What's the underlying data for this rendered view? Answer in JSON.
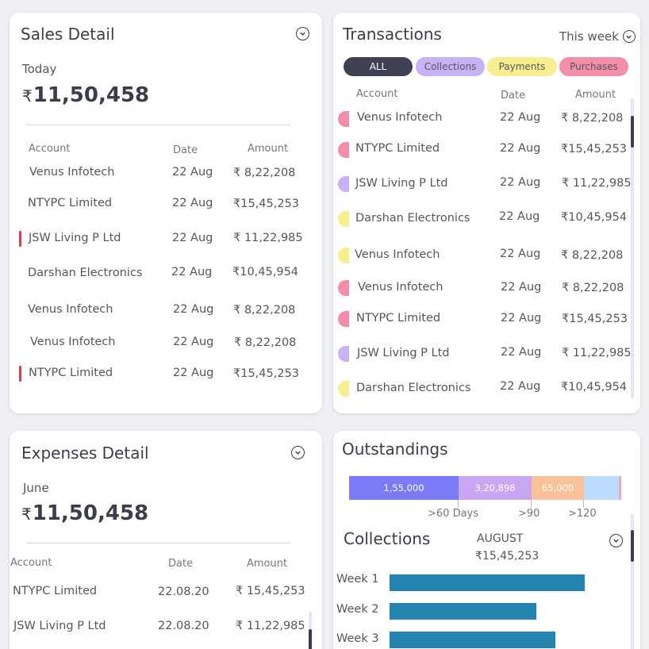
{
  "sales": {
    "title": "Sales Detail",
    "period": "Today",
    "currency": "₹",
    "total": "11,50,458",
    "headers": {
      "account": "Account",
      "date": "Date",
      "amount": "Amount"
    },
    "rows": [
      {
        "account": "Venus Infotech",
        "date": "22 Aug",
        "amount": "₹ 8,22,208"
      },
      {
        "account": "NTYPC Limited",
        "date": "22 Aug",
        "amount": "₹15,45,253"
      },
      {
        "account": "JSW Living P Ltd",
        "date": "22 Aug",
        "amount": "₹ 11,22,985"
      },
      {
        "account": "Darshan Electronics",
        "date": "22 Aug",
        "amount": "₹10,45,954"
      },
      {
        "account": "Venus Infotech",
        "date": "22 Aug",
        "amount": "₹ 8,22,208"
      },
      {
        "account": "Venus Infotech",
        "date": "22 Aug",
        "amount": "₹ 8,22,208"
      },
      {
        "account": "NTYPC Limited",
        "date": "22 Aug",
        "amount": "₹15,45,253"
      }
    ]
  },
  "transactions": {
    "title": "Transactions",
    "filter": "This week",
    "tabs": {
      "all": "ALL",
      "collections": "Collections",
      "payments": "Payments",
      "purchases": "Purchases"
    },
    "headers": {
      "account": "Account",
      "date": "Date",
      "amount": "Amount"
    },
    "rows": [
      {
        "account": "Venus Infotech",
        "date": "22 Aug",
        "amount": "₹ 8,22,208",
        "type": "purchases"
      },
      {
        "account": "NTYPC Limited",
        "date": "22 Aug",
        "amount": "₹15,45,253",
        "type": "purchases"
      },
      {
        "account": "JSW Living P Ltd",
        "date": "22 Aug",
        "amount": "₹ 11,22,985",
        "type": "collections"
      },
      {
        "account": "Darshan Electronics",
        "date": "22 Aug",
        "amount": "₹10,45,954",
        "type": "payments"
      },
      {
        "account": "Venus Infotech",
        "date": "22 Aug",
        "amount": "₹ 8,22,208",
        "type": "payments"
      },
      {
        "account": "Venus Infotech",
        "date": "22 Aug",
        "amount": "₹ 8,22,208",
        "type": "purchases"
      },
      {
        "account": "NTYPC Limited",
        "date": "22 Aug",
        "amount": "₹15,45,253",
        "type": "purchases"
      },
      {
        "account": "JSW Living P Ltd",
        "date": "22 Aug",
        "amount": "₹ 11,22,985",
        "type": "collections"
      },
      {
        "account": "Darshan Electronics",
        "date": "22 Aug",
        "amount": "₹10,45,954",
        "type": "payments"
      }
    ]
  },
  "expenses": {
    "title": "Expenses Detail",
    "period": "June",
    "currency": "₹",
    "total": "11,50,458",
    "headers": {
      "account": "Account",
      "date": "Date",
      "amount": "Amount"
    },
    "rows": [
      {
        "account": "NTYPC Limited",
        "date": "22.08.20",
        "amount": "₹ 15,45,253"
      },
      {
        "account": "JSW Living P Ltd",
        "date": "22.08.20",
        "amount": "₹ 11,22,985"
      }
    ]
  },
  "outstandings": {
    "title": "Outstandings",
    "segments": [
      {
        "label": "1,55,000",
        "color": "#7b7bf7"
      },
      {
        "label": "3,20,898",
        "color": "#c9a6f2"
      },
      {
        "label": "65,000",
        "color": "#f9c199"
      },
      {
        "label": "",
        "color": "#bcdcff"
      },
      {
        "label": "",
        "color": "#f7a3bd"
      }
    ],
    "ticks": [
      ">60 Days",
      ">90",
      ">120"
    ]
  },
  "collections": {
    "title": "Collections",
    "month": "AUGUST",
    "amount": "₹15,45,253",
    "weeks": [
      {
        "label": "Week 1",
        "fraction": 1.0
      },
      {
        "label": "Week 2",
        "fraction": 0.75
      },
      {
        "label": "Week 3",
        "fraction": 0.85
      }
    ]
  },
  "colors": {
    "purchases": "#f48ea8",
    "collections": "#c8b2f4",
    "payments": "#f7ef8f",
    "all": "#3f4152",
    "bar": "#2385b0"
  }
}
